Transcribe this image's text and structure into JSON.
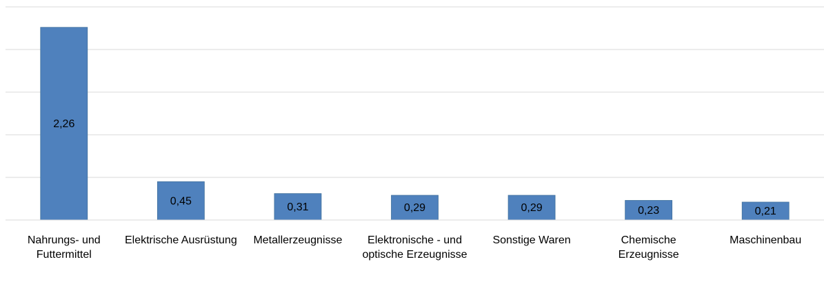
{
  "chart_data": {
    "type": "bar",
    "categories": [
      "Nahrungs- und Futtermittel",
      "Elektrische Ausrüstung",
      "Metallerzeugnisse",
      "Elektronische - und optische Erzeugnisse",
      "Sonstige Waren",
      "Chemische Erzeugnisse",
      "Maschinenbau"
    ],
    "values": [
      2.26,
      0.45,
      0.31,
      0.29,
      0.29,
      0.23,
      0.21
    ],
    "value_labels": [
      "2,26",
      "0,45",
      "0,31",
      "0,29",
      "0,29",
      "0,23",
      "0,21"
    ],
    "color": "#4f81bd",
    "ylim": [
      0,
      2.5
    ],
    "yticks": [
      0,
      0.5,
      1,
      1.5,
      2,
      2.5
    ],
    "grid": true
  }
}
